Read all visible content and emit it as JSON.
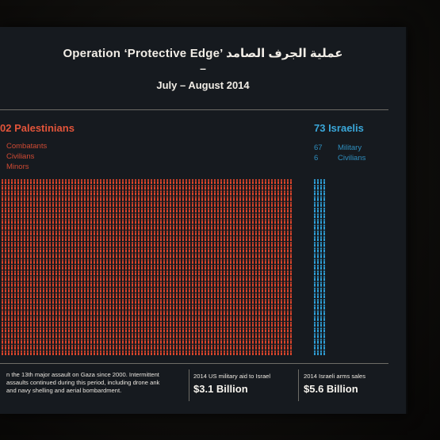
{
  "header": {
    "title": "Operation ‘Protective Edge’ عملية الجرف الصامد",
    "dash": "–",
    "subtitle": "July – August 2014"
  },
  "palestinians": {
    "heading": "02 Palestinians",
    "legend": [
      "Combatants",
      "Civilians",
      "Minors"
    ],
    "color": "#d9442b"
  },
  "israelis": {
    "heading": "73 Israelis",
    "legend": [
      {
        "count": "67",
        "label": "Military"
      },
      {
        "count": "6",
        "label": "Civilians"
      }
    ],
    "color": "#2f9dd4"
  },
  "footnote": "n the 13th major assault on Gaza since 2000. Intermittent assaults continued during this period, including drone ank and navy shelling and aerial bombardment.",
  "stats": [
    {
      "label": "2014 US military aid to Israel",
      "value": "$3.1 Billion"
    },
    {
      "label": "2014 Israeli arms sales",
      "value": "$5.6 Billion"
    }
  ]
}
